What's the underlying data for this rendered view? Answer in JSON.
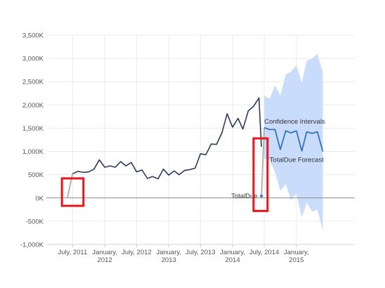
{
  "chart_data": {
    "type": "line",
    "x_axis": {
      "type": "date",
      "range": [
        "2011-02-01",
        "2015-12-01"
      ],
      "ticks": [
        {
          "date": "2011-07-01",
          "lines": [
            "July, 2011"
          ]
        },
        {
          "date": "2012-01-01",
          "lines": [
            "January,",
            "2012"
          ]
        },
        {
          "date": "2012-07-01",
          "lines": [
            "July, 2012"
          ]
        },
        {
          "date": "2013-01-01",
          "lines": [
            "January,",
            "2013"
          ]
        },
        {
          "date": "2013-07-01",
          "lines": [
            "July, 2013"
          ]
        },
        {
          "date": "2014-01-01",
          "lines": [
            "January,",
            "2014"
          ]
        },
        {
          "date": "2014-07-01",
          "lines": [
            "July, 2014"
          ]
        },
        {
          "date": "2015-01-01",
          "lines": [
            "January,",
            "2015"
          ]
        }
      ]
    },
    "y_axis": {
      "range": [
        -1000000,
        3500000
      ],
      "ticks": [
        {
          "value": 3500000,
          "label": "3,500K"
        },
        {
          "value": 3000000,
          "label": "3,000K"
        },
        {
          "value": 2500000,
          "label": "2,500K"
        },
        {
          "value": 2000000,
          "label": "2,000K"
        },
        {
          "value": 1500000,
          "label": "1,500K"
        },
        {
          "value": 1000000,
          "label": "1,000K"
        },
        {
          "value": 500000,
          "label": "500K"
        },
        {
          "value": 0,
          "label": "0K"
        },
        {
          "value": -500000,
          "label": "-500K"
        },
        {
          "value": -1000000,
          "label": "-1,000K"
        }
      ]
    },
    "grid": true,
    "colors": {
      "actual": "#2b3a5c",
      "forecast": "#2f74c0",
      "confidence": "#c9dcfb",
      "anomaly": "#b3b3b3",
      "highlight": "#e8151d",
      "zero_line": "#8c8c8c",
      "grid": "#eaeaea"
    },
    "series": [
      {
        "name": "TotalDue",
        "role": "actual",
        "points": [
          [
            "2011-07-01",
            520000
          ],
          [
            "2011-08-01",
            570000
          ],
          [
            "2011-09-01",
            550000
          ],
          [
            "2011-10-01",
            560000
          ],
          [
            "2011-11-01",
            620000
          ],
          [
            "2011-12-01",
            820000
          ],
          [
            "2012-01-01",
            660000
          ],
          [
            "2012-02-01",
            690000
          ],
          [
            "2012-03-01",
            660000
          ],
          [
            "2012-04-01",
            780000
          ],
          [
            "2012-05-01",
            690000
          ],
          [
            "2012-06-01",
            760000
          ],
          [
            "2012-07-01",
            560000
          ],
          [
            "2012-08-01",
            600000
          ],
          [
            "2012-09-01",
            420000
          ],
          [
            "2012-10-01",
            460000
          ],
          [
            "2012-11-01",
            410000
          ],
          [
            "2012-12-01",
            620000
          ],
          [
            "2013-01-01",
            490000
          ],
          [
            "2013-02-01",
            580000
          ],
          [
            "2013-03-01",
            500000
          ],
          [
            "2013-04-01",
            590000
          ],
          [
            "2013-05-01",
            610000
          ],
          [
            "2013-06-01",
            640000
          ],
          [
            "2013-07-01",
            950000
          ],
          [
            "2013-08-01",
            930000
          ],
          [
            "2013-09-01",
            1160000
          ],
          [
            "2013-10-01",
            1150000
          ],
          [
            "2013-11-01",
            1400000
          ],
          [
            "2013-12-01",
            1810000
          ],
          [
            "2014-01-01",
            1520000
          ],
          [
            "2014-02-01",
            1710000
          ],
          [
            "2014-03-01",
            1480000
          ],
          [
            "2014-04-01",
            1870000
          ],
          [
            "2014-05-01",
            1970000
          ],
          [
            "2014-06-01",
            2150000
          ],
          [
            "2014-06-15",
            1100000
          ]
        ]
      },
      {
        "name": "TotalDue Forecast",
        "role": "forecast",
        "points": [
          [
            "2014-07-01",
            1510000
          ],
          [
            "2014-08-01",
            1470000
          ],
          [
            "2014-09-01",
            1470000
          ],
          [
            "2014-10-01",
            1040000
          ],
          [
            "2014-11-01",
            1440000
          ],
          [
            "2014-12-01",
            1400000
          ],
          [
            "2015-01-01",
            1440000
          ],
          [
            "2015-02-01",
            1010000
          ],
          [
            "2015-03-01",
            1420000
          ],
          [
            "2015-04-01",
            1390000
          ],
          [
            "2015-05-01",
            1420000
          ],
          [
            "2015-06-01",
            1000000
          ]
        ]
      },
      {
        "name": "Confidence Intervals",
        "role": "band",
        "points": [
          [
            "2014-07-01",
            2200000,
            850000
          ],
          [
            "2014-08-01",
            2130000,
            800000
          ],
          [
            "2014-09-01",
            2420000,
            560000
          ],
          [
            "2014-10-01",
            2200000,
            150000
          ],
          [
            "2014-11-01",
            2650000,
            300000
          ],
          [
            "2014-12-01",
            2720000,
            -50000
          ],
          [
            "2015-01-01",
            2850000,
            100000
          ],
          [
            "2015-02-01",
            2480000,
            -420000
          ],
          [
            "2015-03-01",
            2950000,
            -100000
          ],
          [
            "2015-04-01",
            2990000,
            -300000
          ],
          [
            "2015-05-01",
            3100000,
            -250000
          ],
          [
            "2015-06-01",
            2700000,
            -700000
          ]
        ]
      }
    ],
    "anomaly_segments": [
      {
        "points": [
          [
            "2011-06-01",
            0
          ],
          [
            "2011-07-01",
            520000
          ]
        ]
      },
      {
        "points": [
          [
            "2014-06-15",
            0
          ],
          [
            "2014-07-01",
            1510000
          ]
        ]
      }
    ],
    "annotations": [
      {
        "text": "Confidence Intervals",
        "date": "2014-07-01",
        "value": 1640000,
        "anchor": "start"
      },
      {
        "text": "TotalDue Forecast",
        "date": "2014-08-01",
        "value": 820000,
        "anchor": "start"
      },
      {
        "text": "TotalDue",
        "date": "2014-06-01",
        "value": 40000,
        "anchor": "end"
      }
    ],
    "markers": [
      {
        "date": "2014-06-15",
        "value": 40000
      }
    ],
    "highlight_boxes": [
      {
        "from": "2011-05-01",
        "to": "2011-09-01",
        "y_top": 420000,
        "y_bottom": -170000
      },
      {
        "from": "2014-05-01",
        "to": "2014-07-20",
        "y_top": 1280000,
        "y_bottom": -280000
      }
    ]
  }
}
